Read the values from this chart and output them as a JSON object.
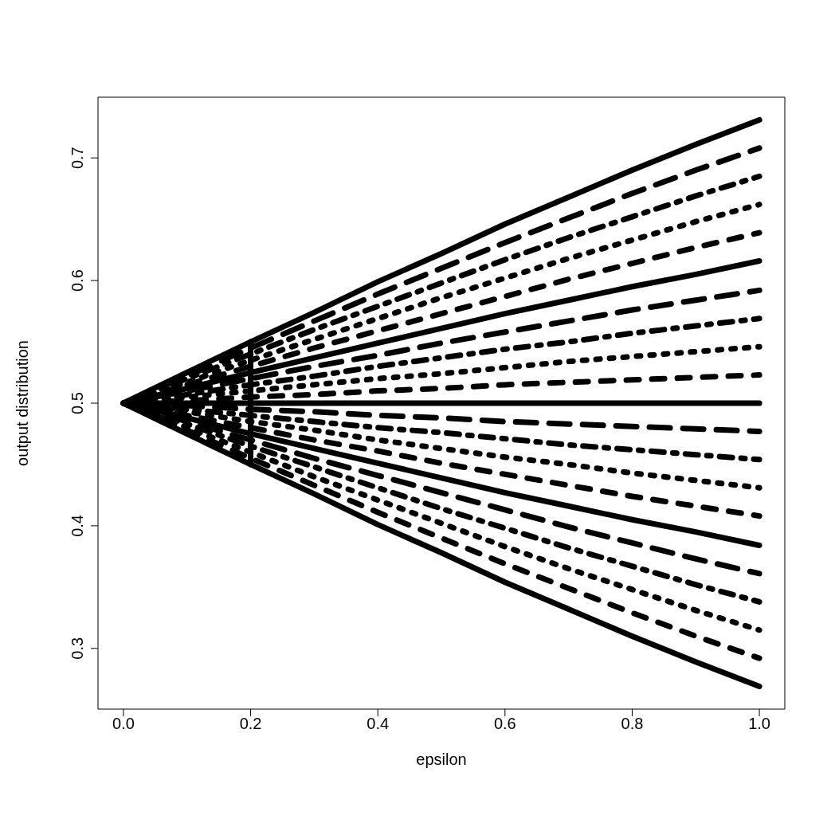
{
  "chart_data": {
    "type": "line",
    "xlabel": "epsilon",
    "ylabel": "output distribution",
    "x": [
      0,
      0.1,
      0.2,
      0.3,
      0.4,
      0.5,
      0.6,
      0.7,
      0.8,
      0.9,
      1
    ],
    "xlim": [
      -0.04,
      1.04
    ],
    "xticks": [
      {
        "value": 0,
        "label": "0.0"
      },
      0.2,
      0.4,
      0.6,
      0.8,
      {
        "value": 1,
        "label": "1.0"
      }
    ],
    "ylim": [
      0.2505,
      0.7495
    ],
    "yticks": [
      0.3,
      0.4,
      0.5,
      0.6,
      0.7
    ],
    "marker": "none",
    "series": [
      {
        "color": "#000000",
        "line_style": "solid",
        "values": [
          0.5,
          0.525,
          0.55,
          0.574,
          0.599,
          0.622,
          0.646,
          0.668,
          0.69,
          0.711,
          0.731
        ]
      },
      {
        "color": "#000000",
        "line_style": "longdash",
        "values": [
          0.5,
          0.522,
          0.545,
          0.567,
          0.589,
          0.61,
          0.631,
          0.651,
          0.671,
          0.69,
          0.708
        ]
      },
      {
        "color": "#000000",
        "line_style": "dashdot",
        "values": [
          0.5,
          0.52,
          0.54,
          0.56,
          0.579,
          0.598,
          0.617,
          0.635,
          0.652,
          0.669,
          0.685
        ]
      },
      {
        "color": "#000000",
        "line_style": "dotted",
        "values": [
          0.5,
          0.517,
          0.535,
          0.552,
          0.569,
          0.586,
          0.602,
          0.618,
          0.633,
          0.648,
          0.662
        ]
      },
      {
        "color": "#000000",
        "line_style": "dashed",
        "values": [
          0.5,
          0.515,
          0.53,
          0.545,
          0.559,
          0.573,
          0.587,
          0.601,
          0.614,
          0.627,
          0.639
        ]
      },
      {
        "color": "#000000",
        "line_style": "solid",
        "values": [
          0.5,
          0.512,
          0.525,
          0.537,
          0.549,
          0.561,
          0.573,
          0.584,
          0.595,
          0.605,
          0.616
        ]
      },
      {
        "color": "#000000",
        "line_style": "longdash",
        "values": [
          0.5,
          0.51,
          0.52,
          0.53,
          0.539,
          0.549,
          0.558,
          0.567,
          0.576,
          0.584,
          0.592
        ]
      },
      {
        "color": "#000000",
        "line_style": "dashdot",
        "values": [
          0.5,
          0.507,
          0.515,
          0.522,
          0.53,
          0.537,
          0.544,
          0.55,
          0.557,
          0.563,
          0.569
        ]
      },
      {
        "color": "#000000",
        "line_style": "dotted",
        "values": [
          0.5,
          0.505,
          0.51,
          0.515,
          0.52,
          0.524,
          0.529,
          0.534,
          0.538,
          0.542,
          0.546
        ]
      },
      {
        "color": "#000000",
        "line_style": "dashed",
        "values": [
          0.5,
          0.502,
          0.505,
          0.507,
          0.51,
          0.512,
          0.515,
          0.517,
          0.519,
          0.521,
          0.523
        ]
      },
      {
        "color": "#000000",
        "line_style": "solid",
        "values": [
          0.5,
          0.5,
          0.5,
          0.5,
          0.5,
          0.5,
          0.5,
          0.5,
          0.5,
          0.5,
          0.5
        ]
      },
      {
        "color": "#000000",
        "line_style": "longdash",
        "values": [
          0.5,
          0.498,
          0.495,
          0.493,
          0.49,
          0.488,
          0.485,
          0.483,
          0.481,
          0.479,
          0.477
        ]
      },
      {
        "color": "#000000",
        "line_style": "dashdot",
        "values": [
          0.5,
          0.495,
          0.49,
          0.485,
          0.48,
          0.476,
          0.471,
          0.466,
          0.462,
          0.458,
          0.454
        ]
      },
      {
        "color": "#000000",
        "line_style": "dotted",
        "values": [
          0.5,
          0.493,
          0.485,
          0.478,
          0.47,
          0.463,
          0.456,
          0.45,
          0.443,
          0.437,
          0.431
        ]
      },
      {
        "color": "#000000",
        "line_style": "dashed",
        "values": [
          0.5,
          0.49,
          0.48,
          0.47,
          0.461,
          0.451,
          0.442,
          0.433,
          0.424,
          0.416,
          0.408
        ]
      },
      {
        "color": "#000000",
        "line_style": "solid",
        "values": [
          0.5,
          0.488,
          0.475,
          0.463,
          0.451,
          0.439,
          0.427,
          0.416,
          0.405,
          0.395,
          0.384
        ]
      },
      {
        "color": "#000000",
        "line_style": "longdash",
        "values": [
          0.5,
          0.485,
          0.47,
          0.455,
          0.441,
          0.427,
          0.413,
          0.399,
          0.386,
          0.373,
          0.361
        ]
      },
      {
        "color": "#000000",
        "line_style": "dashdot",
        "values": [
          0.5,
          0.483,
          0.465,
          0.448,
          0.431,
          0.414,
          0.398,
          0.382,
          0.367,
          0.352,
          0.338
        ]
      },
      {
        "color": "#000000",
        "line_style": "dotted",
        "values": [
          0.5,
          0.48,
          0.46,
          0.44,
          0.421,
          0.402,
          0.383,
          0.365,
          0.348,
          0.331,
          0.315
        ]
      },
      {
        "color": "#000000",
        "line_style": "dashed",
        "values": [
          0.5,
          0.478,
          0.455,
          0.433,
          0.411,
          0.39,
          0.369,
          0.349,
          0.329,
          0.31,
          0.292
        ]
      },
      {
        "color": "#000000",
        "line_style": "solid",
        "values": [
          0.5,
          0.475,
          0.45,
          0.426,
          0.401,
          0.378,
          0.354,
          0.332,
          0.31,
          0.289,
          0.269
        ]
      },
      {
        "type": "line",
        "color": "#000000",
        "line_style": "solid",
        "x": [
          0.2,
          0.2
        ],
        "values": [
          0.45,
          0.55
        ]
      }
    ]
  }
}
